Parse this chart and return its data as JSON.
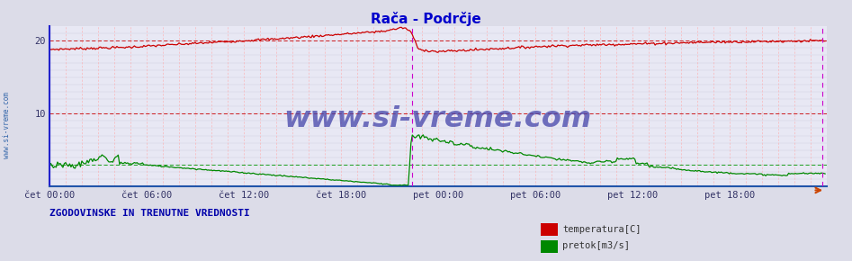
{
  "title": "Rača - Podrčje",
  "title_color": "#0000cc",
  "bg_color": "#dcdce8",
  "plot_bg_color": "#e8e8f4",
  "ylabel_temp": "temperatura[C]",
  "ylabel_flow": "pretok[m3/s]",
  "xlabel_ticks": [
    "čet 00:00",
    "čet 06:00",
    "čet 12:00",
    "čet 18:00",
    "pet 00:00",
    "pet 06:00",
    "pet 12:00",
    "pet 18:00"
  ],
  "temp_color": "#cc0000",
  "flow_color": "#008800",
  "hline_temp_color": "#cc0000",
  "hline_flow_color": "#009900",
  "hline_10_color": "#cc0000",
  "vline_minor_color": "#ffaaaa",
  "vline_major_color": "#cc00cc",
  "vline_left_color": "#2222cc",
  "watermark": "www.si-vreme.com",
  "watermark_color": "#4444aa",
  "bottom_text": "ZGODOVINSKE IN TRENUTNE VREDNOSTI",
  "bottom_text_color": "#0000aa",
  "ytick_labels": [
    "10",
    "20"
  ],
  "ytick_vals": [
    10,
    20
  ],
  "ymax": 22,
  "ymin": 0,
  "n_points": 576,
  "n_minor_vlines": 48,
  "major_vline_pos": 0.468,
  "right_vline_pos": 0.998
}
